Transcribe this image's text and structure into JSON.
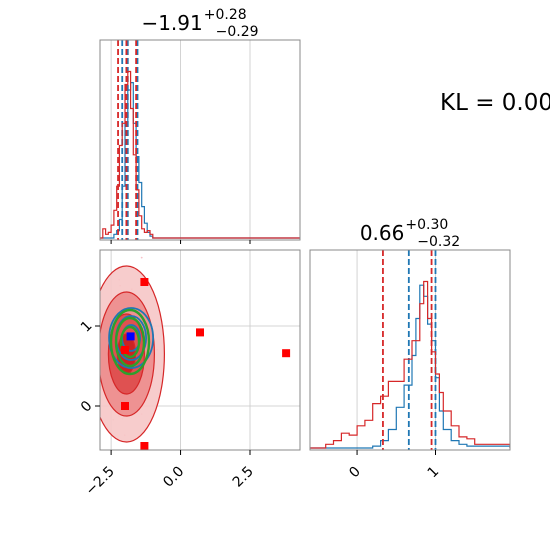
{
  "chart_data": [
    {
      "type": "histogram",
      "panel": "marginal-param1",
      "title_main": "−1.91",
      "title_sup": "+0.28",
      "title_sub": "−0.29",
      "xlim": [
        -2.9,
        4.3
      ],
      "grid": true,
      "series": [
        {
          "color": "#1f77b4",
          "x": [
            -2.9,
            -2.6,
            -2.4,
            -2.3,
            -2.2,
            -2.1,
            -2.0,
            -1.9,
            -1.8,
            -1.7,
            -1.6,
            -1.5,
            -1.4,
            -1.3,
            -1.2,
            -1.1,
            -1.0,
            4.3
          ],
          "density": [
            0,
            0,
            0.02,
            0.04,
            0.1,
            0.28,
            0.62,
            0.8,
            0.84,
            0.62,
            0.44,
            0.3,
            0.17,
            0.08,
            0.03,
            0.01,
            0,
            0
          ],
          "quantile_lines": [
            -2.1,
            -1.9,
            -1.55
          ]
        },
        {
          "color": "#d62728",
          "x": [
            -2.9,
            -2.8,
            -2.7,
            -2.6,
            -2.5,
            -2.4,
            -2.3,
            -2.2,
            -2.1,
            -2.0,
            -1.9,
            -1.8,
            -1.7,
            -1.6,
            -1.5,
            -1.4,
            -1.3,
            -1.2,
            -1.1,
            -1.0,
            4.3
          ],
          "density": [
            0,
            0.05,
            0.02,
            0.03,
            0.07,
            0.15,
            0.28,
            0.5,
            0.62,
            0.83,
            0.9,
            0.7,
            0.45,
            0.26,
            0.12,
            0.05,
            0.03,
            0.04,
            0.02,
            0,
            0
          ],
          "quantile_lines": [
            -2.25,
            -1.95,
            -1.6
          ]
        }
      ]
    },
    {
      "type": "contour",
      "panel": "joint",
      "xlim": [
        -2.9,
        4.3
      ],
      "ylim": [
        -0.55,
        1.95
      ],
      "xticks": [
        "−2.5",
        "0.0",
        "2.5"
      ],
      "yticks": [
        "0",
        "1"
      ],
      "grid": true,
      "markers": [
        {
          "color": "#ff0000",
          "shape": "square",
          "points": [
            [
              -1.3,
              1.55
            ],
            [
              0.7,
              0.92
            ],
            [
              3.8,
              0.66
            ],
            [
              -2.0,
              0.0
            ],
            [
              -1.3,
              -0.5
            ],
            [
              -2.0,
              0.7
            ]
          ]
        },
        {
          "color": "#0000ff",
          "shape": "square",
          "points": [
            [
              -1.8,
              0.87
            ]
          ]
        }
      ],
      "contour_sets": [
        {
          "color": "#d62728",
          "center": [
            -1.95,
            0.65
          ]
        },
        {
          "color": "#1f77b4",
          "center": [
            -1.78,
            0.85
          ]
        },
        {
          "color": "#2ca02c",
          "center": [
            -1.82,
            0.8
          ]
        }
      ]
    },
    {
      "type": "histogram",
      "panel": "marginal-param2",
      "title_main": "0.66",
      "title_sup": "+0.30",
      "title_sub": "−0.32",
      "xlim": [
        -0.6,
        1.95
      ],
      "xticks": [
        "0",
        "1"
      ],
      "grid": true,
      "series": [
        {
          "color": "#1f77b4",
          "x": [
            -0.6,
            0.2,
            0.3,
            0.4,
            0.5,
            0.6,
            0.7,
            0.75,
            0.8,
            0.85,
            0.9,
            0.95,
            1.0,
            1.05,
            1.1,
            1.2,
            1.3,
            1.4,
            1.95
          ],
          "density": [
            0,
            0.01,
            0.04,
            0.1,
            0.22,
            0.34,
            0.5,
            0.7,
            0.88,
            0.82,
            0.67,
            0.58,
            0.38,
            0.2,
            0.1,
            0.04,
            0.02,
            0.01,
            0
          ],
          "quantile_lines": [
            0.66,
            1.0
          ]
        },
        {
          "color": "#d62728",
          "x": [
            -0.6,
            -0.4,
            -0.3,
            -0.2,
            -0.1,
            0.0,
            0.1,
            0.2,
            0.3,
            0.4,
            0.5,
            0.6,
            0.7,
            0.8,
            0.85,
            0.9,
            0.95,
            1.0,
            1.05,
            1.1,
            1.2,
            1.3,
            1.4,
            1.5,
            1.95
          ],
          "density": [
            0,
            0.02,
            0.04,
            0.08,
            0.07,
            0.12,
            0.15,
            0.24,
            0.28,
            0.36,
            0.36,
            0.48,
            0.58,
            0.78,
            0.9,
            0.7,
            0.52,
            0.4,
            0.3,
            0.2,
            0.12,
            0.06,
            0.05,
            0.02,
            0
          ],
          "quantile_lines": [
            0.33,
            0.95
          ]
        }
      ]
    }
  ],
  "annotation": {
    "kl_text": "KL = 0.00"
  }
}
